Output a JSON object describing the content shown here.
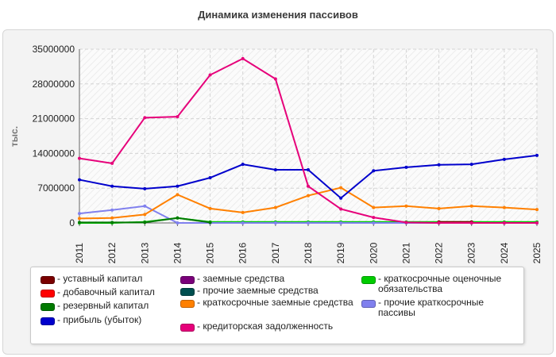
{
  "chart_data": {
    "type": "line",
    "title": "Динамика изменения пассивов",
    "ylabel": "тыс.",
    "xlabel": "",
    "ylim": [
      0,
      35000000
    ],
    "yticks": [
      0,
      7000000,
      14000000,
      21000000,
      28000000,
      35000000
    ],
    "ytick_labels": [
      "0",
      "7000000",
      "14000000",
      "21000000",
      "28000000",
      "35000000"
    ],
    "x": [
      "2011",
      "2012",
      "2013",
      "2014",
      "2015",
      "2016",
      "2017",
      "2018",
      "2019",
      "2020",
      "2021",
      "2022",
      "2023",
      "2024",
      "2025"
    ],
    "grid": true,
    "legend_position": "bottom",
    "series": [
      {
        "name": "уставный капитал",
        "color": "#7a0000",
        "values": [
          null,
          null,
          null,
          null,
          null,
          null,
          null,
          null,
          null,
          null,
          null,
          200000,
          200000,
          null,
          null
        ]
      },
      {
        "name": "добавочный капитал",
        "color": "#ff0000",
        "values": [
          null,
          null,
          null,
          null,
          null,
          null,
          null,
          null,
          null,
          null,
          null,
          null,
          null,
          null,
          null
        ]
      },
      {
        "name": "резервный капитал",
        "color": "#007a00",
        "values": [
          100000,
          100000,
          100000,
          1000000,
          100000,
          null,
          null,
          null,
          null,
          null,
          null,
          null,
          null,
          null,
          null
        ]
      },
      {
        "name": "прибыль (убыток)",
        "color": "#0000cc",
        "values": [
          8700000,
          7400000,
          6900000,
          7400000,
          9100000,
          11800000,
          10700000,
          10700000,
          5000000,
          10500000,
          11200000,
          11700000,
          11800000,
          12800000,
          13600000
        ]
      },
      {
        "name": "заемные средства",
        "color": "#7a007a",
        "values": [
          null,
          null,
          null,
          null,
          null,
          null,
          null,
          null,
          null,
          null,
          null,
          null,
          null,
          null,
          null
        ]
      },
      {
        "name": "прочие заемные средства",
        "color": "#004f4f",
        "values": [
          null,
          null,
          null,
          null,
          null,
          null,
          null,
          null,
          null,
          null,
          null,
          null,
          null,
          null,
          null
        ]
      },
      {
        "name": "краткосрочные заемные средства",
        "color": "#ff8000",
        "values": [
          900000,
          1000000,
          1700000,
          5700000,
          2900000,
          2100000,
          3100000,
          5500000,
          7100000,
          3100000,
          3400000,
          2900000,
          3400000,
          3100000,
          2700000
        ]
      },
      {
        "name": "кредиторская задолженность",
        "color": "#e6007a",
        "values": [
          13000000,
          12000000,
          21200000,
          21400000,
          29800000,
          33100000,
          29000000,
          7400000,
          2800000,
          1100000,
          100000,
          0,
          0,
          0,
          0
        ]
      },
      {
        "name": "краткосрочные оценочные обязательства",
        "color": "#00cc00",
        "values": [
          0,
          0,
          200000,
          1000000,
          200000,
          200000,
          200000,
          200000,
          200000,
          200000,
          200000,
          200000,
          200000,
          200000,
          200000
        ]
      },
      {
        "name": "прочие краткосрочные пассивы",
        "color": "#8080ee",
        "values": [
          1900000,
          2600000,
          3400000,
          0,
          0,
          0,
          0,
          0,
          0,
          0,
          0,
          0,
          0,
          0,
          0
        ]
      }
    ]
  }
}
